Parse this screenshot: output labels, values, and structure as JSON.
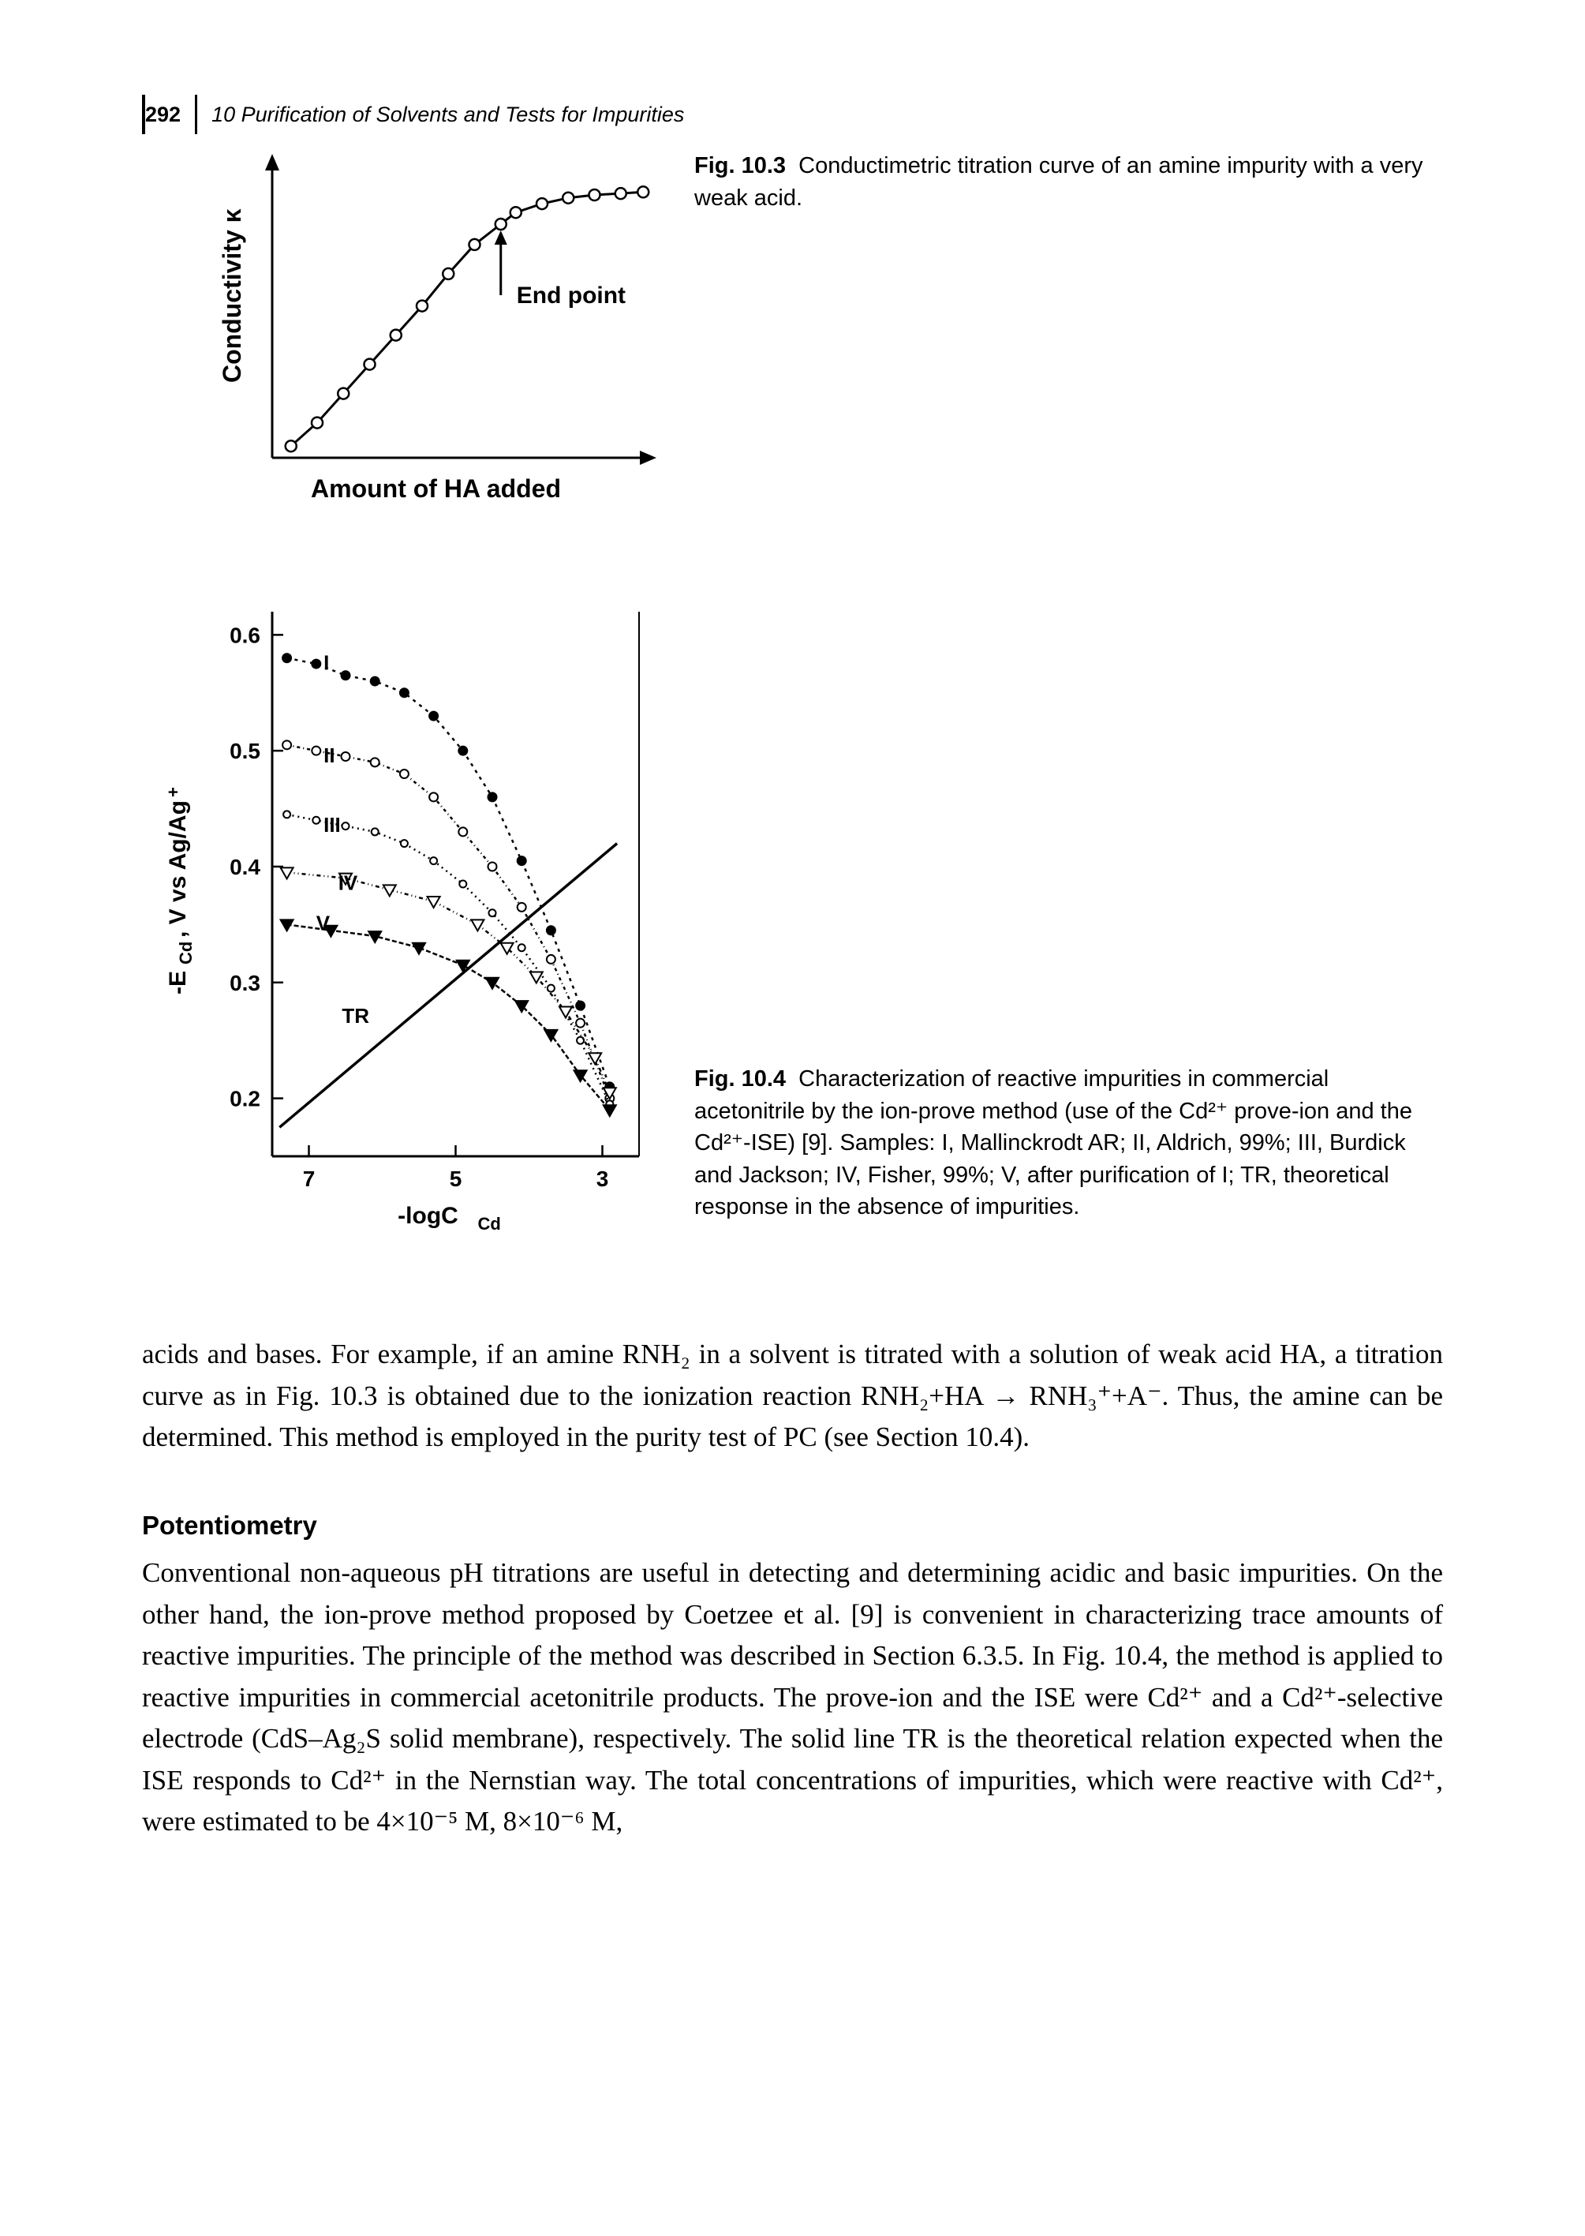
{
  "header": {
    "page_number": "292",
    "running_title": "10 Purification of Solvents and Tests for Impurities"
  },
  "figure1": {
    "caption_label": "Fig. 10.3",
    "caption_text": "Conductimetric titration curve of an amine impurity with a very weak acid.",
    "chart": {
      "type": "line-scatter",
      "xlabel": "Amount of HA added",
      "ylabel": "Conductivity κ",
      "ylabel_rotated": true,
      "annotation": "End point",
      "marker": "circle-open",
      "marker_size": 14,
      "line_width": 3,
      "axis_width": 3,
      "points_x": [
        0.05,
        0.12,
        0.19,
        0.26,
        0.33,
        0.4,
        0.47,
        0.54,
        0.61,
        0.65,
        0.72,
        0.79,
        0.86,
        0.93,
        0.99
      ],
      "points_y": [
        0.04,
        0.12,
        0.22,
        0.32,
        0.42,
        0.52,
        0.63,
        0.73,
        0.8,
        0.84,
        0.87,
        0.89,
        0.9,
        0.905,
        0.91
      ],
      "end_point_x": 0.61,
      "end_point_y": 0.8,
      "colors": {
        "line": "#000000",
        "marker_fill": "#ffffff",
        "axis": "#000000",
        "text": "#000000"
      },
      "font": {
        "axis_label_size": 32,
        "axis_label_weight": "bold",
        "annotation_size": 30,
        "annotation_weight": "bold"
      }
    }
  },
  "figure2": {
    "caption_label": "Fig. 10.4",
    "caption_text": "Characterization of reactive impurities in commercial acetonitrile by the ion-prove method (use of the Cd²⁺ prove-ion and the Cd²⁺-ISE) [9]. Samples: I, Mallinckrodt AR; II, Aldrich, 99%; III, Burdick and Jackson; IV, Fisher, 99%; V, after purification of I; TR, theoretical response in the absence of impurities.",
    "chart": {
      "type": "multi-line",
      "xlabel": "-logC_Cd",
      "ylabel": "-E_Cd, V vs Ag/Ag⁺",
      "xlim": [
        7.5,
        2.5
      ],
      "ylim": [
        0.15,
        0.62
      ],
      "xticks": [
        7,
        5,
        3
      ],
      "yticks": [
        0.2,
        0.3,
        0.4,
        0.5,
        0.6
      ],
      "axis_width": 3,
      "font": {
        "axis_label_size": 30,
        "axis_label_weight": "bold",
        "tick_size": 28,
        "series_label_size": 26,
        "series_label_weight": "bold"
      },
      "colors": {
        "axis": "#000000",
        "text": "#000000",
        "line": "#000000"
      },
      "series": [
        {
          "name": "I",
          "label_pos": [
            6.8,
            0.57
          ],
          "dash": "4,6",
          "marker": "circle-solid",
          "marker_size": 11,
          "x": [
            7.3,
            6.9,
            6.5,
            6.1,
            5.7,
            5.3,
            4.9,
            4.5,
            4.1,
            3.7,
            3.3,
            2.9
          ],
          "y": [
            0.58,
            0.575,
            0.565,
            0.56,
            0.55,
            0.53,
            0.5,
            0.46,
            0.405,
            0.345,
            0.28,
            0.21
          ]
        },
        {
          "name": "II",
          "label_pos": [
            6.8,
            0.49
          ],
          "dash": "4,4,1,4",
          "marker": "circle-open",
          "marker_size": 11,
          "x": [
            7.3,
            6.9,
            6.5,
            6.1,
            5.7,
            5.3,
            4.9,
            4.5,
            4.1,
            3.7,
            3.3,
            2.9
          ],
          "y": [
            0.505,
            0.5,
            0.495,
            0.49,
            0.48,
            0.46,
            0.43,
            0.4,
            0.365,
            0.32,
            0.265,
            0.2
          ]
        },
        {
          "name": "III",
          "label_pos": [
            6.8,
            0.43
          ],
          "dash": "2,5",
          "marker": "circle-open",
          "marker_size": 9,
          "x": [
            7.3,
            6.9,
            6.5,
            6.1,
            5.7,
            5.3,
            4.9,
            4.5,
            4.1,
            3.7,
            3.3,
            2.9
          ],
          "y": [
            0.445,
            0.44,
            0.435,
            0.43,
            0.42,
            0.405,
            0.385,
            0.36,
            0.33,
            0.295,
            0.25,
            0.195
          ]
        },
        {
          "name": "IV",
          "label_pos": [
            6.6,
            0.38
          ],
          "dash": "5,4,1,4,1,4",
          "marker": "triangle-down-open",
          "marker_size": 12,
          "x": [
            7.3,
            6.5,
            5.9,
            5.3,
            4.7,
            4.3,
            3.9,
            3.5,
            3.1,
            2.9
          ],
          "y": [
            0.395,
            0.39,
            0.38,
            0.37,
            0.35,
            0.33,
            0.305,
            0.275,
            0.235,
            0.205
          ]
        },
        {
          "name": "V",
          "label_pos": [
            6.9,
            0.345
          ],
          "dash": "6,3",
          "marker": "triangle-down-solid",
          "marker_size": 12,
          "x": [
            7.3,
            6.7,
            6.1,
            5.5,
            4.9,
            4.5,
            4.1,
            3.7,
            3.3,
            2.9
          ],
          "y": [
            0.35,
            0.345,
            0.34,
            0.33,
            0.315,
            0.3,
            0.28,
            0.255,
            0.22,
            0.19
          ]
        },
        {
          "name": "TR",
          "label_pos": [
            6.55,
            0.265
          ],
          "dash": "none",
          "marker": "none",
          "x": [
            7.4,
            2.8
          ],
          "y": [
            0.175,
            0.42
          ]
        }
      ]
    }
  },
  "body": {
    "para1": "acids and bases. For example, if an amine RNH₂ in a solvent is titrated with a solution of weak acid HA, a titration curve as in Fig. 10.3 is obtained due to the ionization reaction RNH₂+HA → RNH₃⁺+A⁻. Thus, the amine can be determined. This method is employed in the purity test of PC (see Section 10.4).",
    "section_head": "Potentiometry",
    "para2": "Conventional non-aqueous pH titrations are useful in detecting and determining acidic and basic impurities. On the other hand, the ion-prove method proposed by Coetzee et al. [9] is convenient in characterizing trace amounts of reactive impurities. The principle of the method was described in Section 6.3.5. In Fig. 10.4, the method is applied to reactive impurities in commercial acetonitrile products. The prove-ion and the ISE were Cd²⁺ and a Cd²⁺-selective electrode (CdS–Ag₂S solid membrane), respectively. The solid line TR is the theoretical relation expected when the ISE responds to Cd²⁺ in the Nernstian way. The total concentrations of impurities, which were reactive with Cd²⁺, were estimated to be 4×10⁻⁵ M, 8×10⁻⁶ M,"
  }
}
